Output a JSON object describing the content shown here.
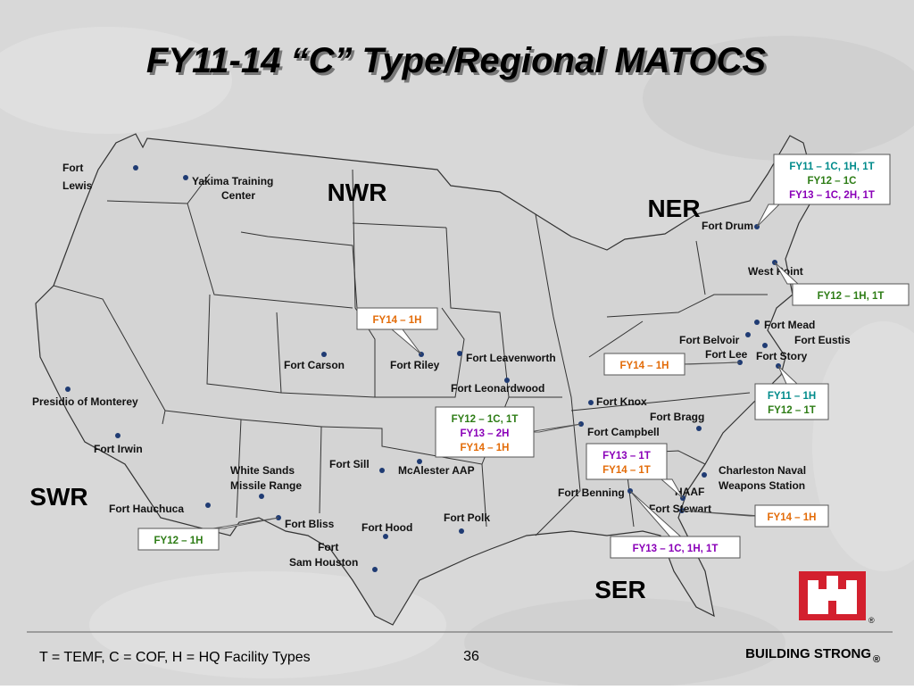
{
  "title": "FY11-14 “C” Type/Regional MATOCS",
  "regions": [
    "NWR",
    "NER",
    "SWR",
    "SER"
  ],
  "installations": [
    {
      "lines": [
        "Fort",
        "Lewis"
      ]
    },
    {
      "lines": [
        "Yakima Training",
        "Center"
      ]
    },
    {
      "lines": [
        "Presidio of Monterey"
      ]
    },
    {
      "lines": [
        "Fort Irwin"
      ]
    },
    {
      "lines": [
        "Fort Hauchuca"
      ]
    },
    {
      "lines": [
        "White Sands",
        "Missile Range"
      ]
    },
    {
      "lines": [
        "Fort Bliss"
      ]
    },
    {
      "lines": [
        "Fort Carson"
      ]
    },
    {
      "lines": [
        "Fort Riley"
      ]
    },
    {
      "lines": [
        "Fort Leavenworth"
      ]
    },
    {
      "lines": [
        "Fort Leonardwood"
      ]
    },
    {
      "lines": [
        "Fort Sill"
      ]
    },
    {
      "lines": [
        "McAlester AAP"
      ]
    },
    {
      "lines": [
        "Fort Hood"
      ]
    },
    {
      "lines": [
        "Fort",
        "Sam Houston"
      ]
    },
    {
      "lines": [
        "Fort Polk"
      ]
    },
    {
      "lines": [
        "Fort Knox"
      ]
    },
    {
      "lines": [
        "Fort Campbell"
      ]
    },
    {
      "lines": [
        "Fort Bragg"
      ]
    },
    {
      "lines": [
        "Fort Benning"
      ]
    },
    {
      "lines": [
        "Fort Stewart"
      ]
    },
    {
      "lines": [
        "HAAF"
      ]
    },
    {
      "lines": [
        "Charleston Naval",
        "Weapons Station"
      ]
    },
    {
      "lines": [
        "Fort Drum"
      ]
    },
    {
      "lines": [
        "West Point"
      ]
    },
    {
      "lines": [
        "Fort Mead"
      ]
    },
    {
      "lines": [
        "Fort Belvoir"
      ]
    },
    {
      "lines": [
        "Fort Eustis"
      ]
    },
    {
      "lines": [
        "Fort Lee"
      ]
    },
    {
      "lines": [
        "Fort Story"
      ]
    }
  ],
  "callouts": [
    {
      "lines": [
        {
          "text": "FY11 – 1C, 1H, 1T",
          "color": "#008b8b"
        },
        {
          "text": "FY12 – 1C",
          "color": "#2e7d16"
        },
        {
          "text": "FY13 – 1C, 2H, 1T",
          "color": "#8a00b8"
        }
      ]
    },
    {
      "lines": [
        {
          "text": "FY12 – 1H, 1T",
          "color": "#2e7d16"
        }
      ]
    },
    {
      "lines": [
        {
          "text": "FY14 – 1H",
          "color": "#e36c09"
        }
      ]
    },
    {
      "lines": [
        {
          "text": "FY14 – 1H",
          "color": "#e36c09"
        }
      ]
    },
    {
      "lines": [
        {
          "text": "FY11 – 1H",
          "color": "#008b8b"
        },
        {
          "text": "FY12 – 1T",
          "color": "#2e7d16"
        }
      ]
    },
    {
      "lines": [
        {
          "text": "FY12 – 1C, 1T",
          "color": "#2e7d16"
        },
        {
          "text": "FY13 – 2H",
          "color": "#8a00b8"
        },
        {
          "text": "FY14 – 1H",
          "color": "#e36c09"
        }
      ]
    },
    {
      "lines": [
        {
          "text": "FY13 – 1T",
          "color": "#8a00b8"
        },
        {
          "text": "FY14 – 1T",
          "color": "#e36c09"
        }
      ]
    },
    {
      "lines": [
        {
          "text": "FY14 – 1H",
          "color": "#e36c09"
        }
      ]
    },
    {
      "lines": [
        {
          "text": "FY13 – 1C, 1H, 1T",
          "color": "#8a00b8"
        }
      ]
    },
    {
      "lines": [
        {
          "text": "FY12 – 1H",
          "color": "#2e7d16"
        }
      ]
    }
  ],
  "footer": {
    "legend": "T = TEMF, C = COF, H = HQ Facility Types",
    "page": "36",
    "brand": "BUILDING STRONG",
    "mark": "®"
  }
}
